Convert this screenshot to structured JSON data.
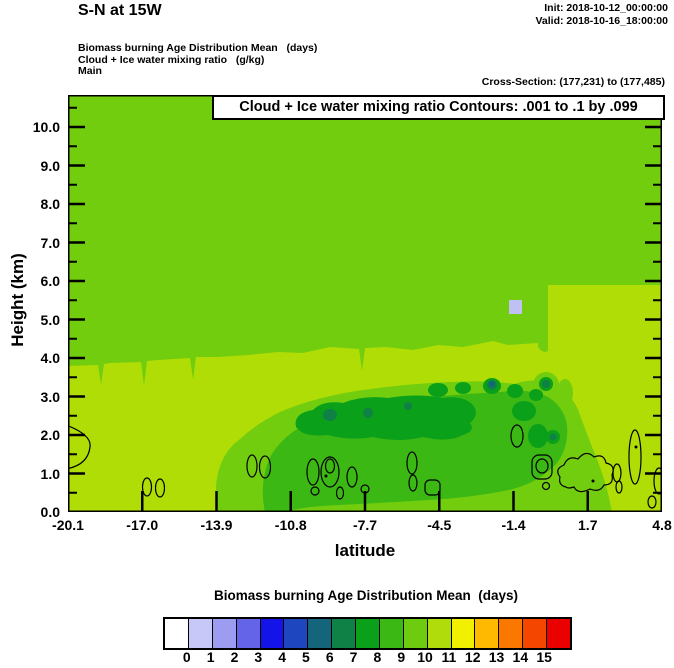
{
  "header": {
    "title": "S-N at 15W",
    "init_line": "Init: 2018-10-12_00:00:00",
    "valid_line": "Valid: 2018-10-16_18:00:00",
    "field_lines": [
      "Biomass burning Age Distribution Mean   (days)",
      "Cloud + Ice water mixing ratio   (g/kg)",
      "Main"
    ],
    "cross_section": "Cross-Section: (177,231) to (177,485)"
  },
  "plot": {
    "contour_box_label": "Cloud + Ice water mixing ratio Contours: .001 to .1 by .099",
    "y_axis": {
      "label": "Height (km)",
      "ticks": [
        "10.0",
        "9.0",
        "8.0",
        "7.0",
        "6.0",
        "5.0",
        "4.0",
        "3.0",
        "2.0",
        "1.0",
        "0.0"
      ]
    },
    "x_axis": {
      "label": "latitude",
      "ticks": [
        "-20.1",
        "-17.0",
        "-13.9",
        "-10.8",
        "-7.7",
        "-4.5",
        "-1.4",
        "1.7",
        "4.8"
      ]
    }
  },
  "colorbar": {
    "title": "Biomass burning Age Distribution Mean  (days)",
    "tick_labels": [
      "0",
      "1",
      "2",
      "3",
      "4",
      "5",
      "6",
      "7",
      "8",
      "9",
      "10",
      "11",
      "12",
      "13",
      "14",
      "15"
    ],
    "cell_colors": [
      "#FFFFFF",
      "#C8C8F8",
      "#9C9CF0",
      "#6464E8",
      "#1414E8",
      "#1E46BE",
      "#14647C",
      "#0F8147",
      "#0AA019",
      "#3CB814",
      "#6ECC10",
      "#AFDC0A",
      "#F0F000",
      "#FFB900",
      "#FA7800",
      "#F54600",
      "#EB0000"
    ]
  },
  "palette": {
    "fill_10_11_days": "#B0DD06",
    "fill_9_10_days": "#72CD0E",
    "fill_8_9_days": "#3CB814",
    "fill_7_8_days": "#0AA019",
    "fill_6_7_days": "#0F8147",
    "fill_5_6_days": "#14647C",
    "fill_1_2_days": "#BFC1F5",
    "contour_line": "#000000"
  },
  "chart_data": {
    "type": "heatmap",
    "subtype": "filled-contour-cross-section",
    "title": "Cloud + Ice water mixing ratio Contours: .001 to .1 by .099",
    "xlabel": "latitude",
    "ylabel": "Height (km)",
    "xlim": [
      -20.1,
      4.8
    ],
    "ylim": [
      0.0,
      10.4
    ],
    "x_ticks": [
      -20.1,
      -17.0,
      -13.9,
      -10.8,
      -7.7,
      -4.5,
      -1.4,
      1.7,
      4.8
    ],
    "y_ticks": [
      0.0,
      1.0,
      2.0,
      3.0,
      4.0,
      5.0,
      6.0,
      7.0,
      8.0,
      9.0,
      10.0
    ],
    "fill_variable": "Biomass burning Age Distribution Mean (days)",
    "fill_levels": [
      0,
      1,
      2,
      3,
      4,
      5,
      6,
      7,
      8,
      9,
      10,
      11,
      12,
      13,
      14,
      15
    ],
    "overlay_line_variable": "Cloud + Ice water mixing ratio (g/kg)",
    "overlay_line_levels": [
      0.001,
      0.1
    ],
    "regions": [
      {
        "description": "upper troposphere, above ~3.5 km across section (down to ~5.0 km north of -1)",
        "value_days": 9.5
      },
      {
        "description": "lower troposphere below ~3.2 km, south of about -13 and north of about 0",
        "value_days": 10.5
      },
      {
        "description": "broad band 1-3.2 km between about -14 and 0 latitude",
        "value_days": 8.5
      },
      {
        "description": "elongated core near 2-3 km between about -11 and -4 latitude",
        "value_days": 7.5
      },
      {
        "description": "small spots embedded in core near -9, -4 and -2 latitude at 2-3 km",
        "value_days": 6.5
      },
      {
        "description": "tiny spot near -1.5 latitude at ~3.2 km",
        "value_days": 5.5
      },
      {
        "description": "isolated grid cell near -1.5 latitude at ~5.2 km",
        "value_days": 1.5
      }
    ],
    "overlay_contours_note": "small closed 0.001/0.1 g/kg cloud contours scattered between 0.5 and 2.5 km from -14 latitude northward",
    "legend_position": "bottom",
    "grid": false
  }
}
